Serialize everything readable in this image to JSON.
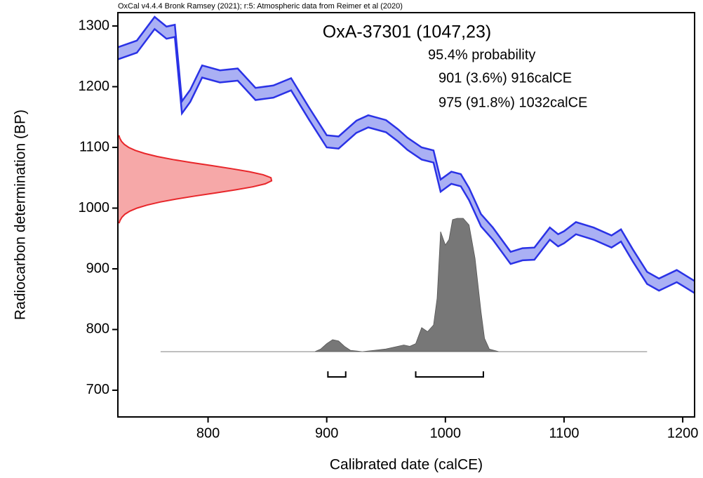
{
  "chart_data": {
    "type": "calibration",
    "credit": "OxCal v4.4.4 Bronk Ramsey (2021); r:5: Atmospheric data from Reimer et al (2020)",
    "title": "OxA-37301 (1047,23)",
    "probability_label": "95.4% probability",
    "ranges": [
      {
        "from": 901,
        "to": 916,
        "label": "901 (3.6%) 916calCE"
      },
      {
        "from": 975,
        "to": 1032,
        "label": "975 (91.8%) 1032calCE"
      }
    ],
    "xlabel": "Calibrated date (calCE)",
    "ylabel": "Radiocarbon determination (BP)",
    "xlim": [
      724,
      1210
    ],
    "ylim": [
      656,
      1322
    ],
    "xticks": [
      800,
      900,
      1000,
      1100,
      1200
    ],
    "yticks": [
      700,
      800,
      900,
      1000,
      1100,
      1200,
      1300
    ],
    "curve": {
      "color": "#2a32e6",
      "fill": "#aab0f4",
      "x": [
        724,
        740,
        755,
        765,
        772,
        778,
        785,
        795,
        810,
        825,
        840,
        855,
        870,
        885,
        900,
        910,
        925,
        935,
        950,
        960,
        968,
        980,
        990,
        996,
        1005,
        1013,
        1020,
        1030,
        1040,
        1055,
        1065,
        1075,
        1088,
        1095,
        1100,
        1110,
        1125,
        1140,
        1148,
        1158,
        1170,
        1180,
        1195,
        1200,
        1210
      ],
      "upper": [
        1265,
        1276,
        1315,
        1299,
        1302,
        1176,
        1195,
        1235,
        1227,
        1230,
        1198,
        1202,
        1214,
        1166,
        1120,
        1118,
        1144,
        1153,
        1145,
        1130,
        1116,
        1100,
        1095,
        1047,
        1060,
        1056,
        1033,
        990,
        968,
        928,
        934,
        935,
        968,
        957,
        962,
        977,
        968,
        955,
        965,
        932,
        895,
        884,
        898,
        892,
        880
      ],
      "lower": [
        1245,
        1256,
        1295,
        1279,
        1282,
        1156,
        1175,
        1215,
        1207,
        1210,
        1178,
        1182,
        1194,
        1146,
        1100,
        1098,
        1124,
        1133,
        1125,
        1110,
        1096,
        1080,
        1075,
        1027,
        1040,
        1036,
        1013,
        970,
        948,
        908,
        914,
        915,
        948,
        937,
        942,
        957,
        948,
        935,
        945,
        912,
        875,
        864,
        878,
        872,
        860
      ]
    },
    "measurement": {
      "color": "#e8262a",
      "fill": "#f6a8a8",
      "y": [
        975,
        980,
        985,
        990,
        995,
        1000,
        1005,
        1010,
        1015,
        1020,
        1025,
        1030,
        1035,
        1040,
        1045,
        1050,
        1055,
        1060,
        1065,
        1070,
        1075,
        1080,
        1085,
        1090,
        1095,
        1100,
        1105,
        1110,
        1115,
        1120
      ],
      "density": [
        0.0074,
        0.0144,
        0.0264,
        0.0464,
        0.0776,
        0.124,
        0.189,
        0.274,
        0.38,
        0.502,
        0.633,
        0.761,
        0.873,
        0.955,
        0.996,
        0.992,
        0.941,
        0.852,
        0.736,
        0.607,
        0.477,
        0.357,
        0.255,
        0.174,
        0.113,
        0.07,
        0.042,
        0.0235,
        0.0126,
        0.0065
      ]
    },
    "posterior": {
      "color": "#777777",
      "x": [
        760,
        890,
        895,
        900,
        905,
        910,
        915,
        920,
        930,
        940,
        950,
        960,
        965,
        970,
        975,
        980,
        985,
        990,
        993,
        996,
        1000,
        1003,
        1006,
        1010,
        1015,
        1020,
        1025,
        1030,
        1033,
        1037,
        1045,
        1170
      ],
      "density": [
        0,
        0,
        0.02,
        0.06,
        0.09,
        0.08,
        0.04,
        0.01,
        0,
        0.01,
        0.02,
        0.04,
        0.05,
        0.04,
        0.06,
        0.18,
        0.15,
        0.2,
        0.4,
        0.9,
        0.8,
        0.84,
        0.99,
        1,
        1,
        0.95,
        0.7,
        0.3,
        0.1,
        0.02,
        0,
        0
      ]
    }
  }
}
